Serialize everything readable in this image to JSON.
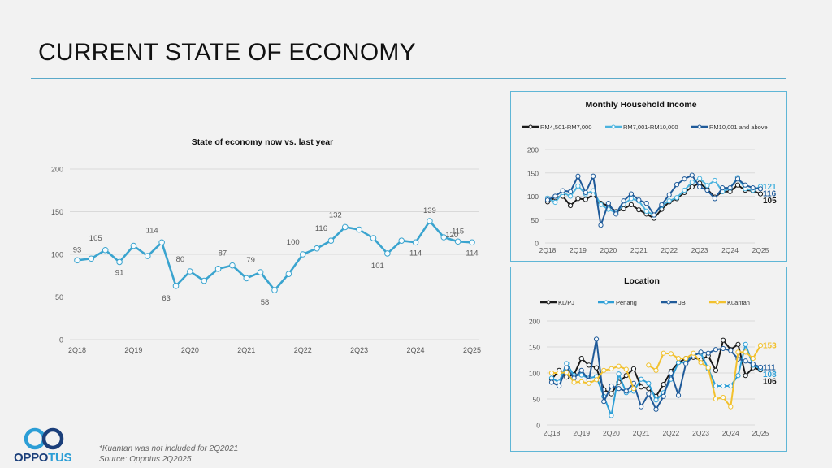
{
  "page": {
    "title": "CURRENT STATE OF ECONOMY",
    "footnote_line1": "*Kuantan was not included for 2Q2021",
    "footnote_line2": "Source: Oppotus 2Q2025",
    "logo": {
      "text_main": "OPPO",
      "text_accent": "TUS",
      "icon": "infinity-rings-icon"
    }
  },
  "colors": {
    "main_line": "#3aa4cf",
    "rule": "#5aa9c9",
    "panel_border": "#5fb6d6",
    "grid": "#d9d9d9",
    "axis_text": "#595959",
    "income_low": "#1a1a1a",
    "income_mid": "#4bb3de",
    "income_high": "#1f5a99",
    "loc_klpj": "#1a1a1a",
    "loc_penang": "#2c9ed6",
    "loc_jb": "#1f5a99",
    "loc_kuantan": "#f2c12e"
  },
  "chart_data": [
    {
      "id": "main",
      "type": "line",
      "title": "State of economy now vs. last year",
      "xlabel": "",
      "ylabel": "",
      "ylim": [
        0,
        200
      ],
      "yticks": [
        0,
        50,
        100,
        150,
        200
      ],
      "grid": true,
      "x": [
        "2Q18",
        "3Q18",
        "4Q18",
        "1Q19",
        "2Q19",
        "3Q19",
        "4Q19",
        "1Q20",
        "2Q20",
        "3Q20",
        "4Q20",
        "1Q21",
        "2Q21",
        "3Q21",
        "4Q21",
        "1Q22",
        "2Q22",
        "3Q22",
        "4Q22",
        "1Q23",
        "2Q23",
        "3Q23",
        "4Q23",
        "1Q24",
        "2Q24",
        "3Q24",
        "4Q24",
        "1Q25",
        "2Q25"
      ],
      "xtick_labels": [
        "2Q18",
        "2Q19",
        "2Q20",
        "2Q21",
        "2Q22",
        "2Q23",
        "2Q24",
        "2Q25"
      ],
      "series": [
        {
          "name": "State of economy",
          "values": [
            93,
            95,
            105,
            91,
            110,
            98,
            114,
            63,
            80,
            69,
            83,
            87,
            72,
            79,
            58,
            77,
            100,
            107,
            116,
            132,
            129,
            119,
            101,
            116,
            114,
            139,
            120,
            115,
            114
          ],
          "labels": [
            {
              "i": 0,
              "text": "93",
              "pos": "above"
            },
            {
              "i": 2,
              "text": "105",
              "pos": "above-left"
            },
            {
              "i": 3,
              "text": "91",
              "pos": "below"
            },
            {
              "i": 6,
              "text": "114",
              "pos": "above-left"
            },
            {
              "i": 7,
              "text": "63",
              "pos": "below-left"
            },
            {
              "i": 8,
              "text": "80",
              "pos": "above-left"
            },
            {
              "i": 11,
              "text": "87",
              "pos": "above-left"
            },
            {
              "i": 13,
              "text": "79",
              "pos": "above-left"
            },
            {
              "i": 14,
              "text": "58",
              "pos": "below-left"
            },
            {
              "i": 16,
              "text": "100",
              "pos": "above-left"
            },
            {
              "i": 18,
              "text": "116",
              "pos": "above-left"
            },
            {
              "i": 19,
              "text": "132",
              "pos": "above-left"
            },
            {
              "i": 22,
              "text": "101",
              "pos": "below-left"
            },
            {
              "i": 24,
              "text": "114",
              "pos": "below"
            },
            {
              "i": 25,
              "text": "139",
              "pos": "above"
            },
            {
              "i": 26,
              "text": "120",
              "pos": "above-right"
            },
            {
              "i": 27,
              "text": "115",
              "pos": "above"
            },
            {
              "i": 28,
              "text": "114",
              "pos": "below"
            }
          ]
        }
      ],
      "legend": "none"
    },
    {
      "id": "income",
      "type": "line",
      "title": "Monthly Household Income",
      "ylim": [
        0,
        200
      ],
      "yticks": [
        0,
        50,
        100,
        150,
        200
      ],
      "grid": true,
      "legend": "top",
      "xtick_labels": [
        "2Q18",
        "2Q19",
        "2Q20",
        "2Q21",
        "2Q22",
        "2Q23",
        "2Q24",
        "2Q25"
      ],
      "series": [
        {
          "name": "RM4,501-RM7,000",
          "color_key": "income_low",
          "values": [
            88,
            97,
            100,
            80,
            95,
            93,
            103,
            85,
            80,
            67,
            73,
            82,
            71,
            62,
            53,
            72,
            88,
            95,
            108,
            120,
            128,
            115,
            98,
            110,
            110,
            124,
            113,
            112,
            105
          ],
          "end_label": "105"
        },
        {
          "name": "RM7,001-RM10,000",
          "color_key": "income_mid",
          "values": [
            96,
            87,
            108,
            100,
            122,
            105,
            112,
            82,
            72,
            65,
            83,
            95,
            90,
            68,
            60,
            80,
            90,
            97,
            113,
            130,
            138,
            123,
            134,
            110,
            117,
            140,
            116,
            113,
            121
          ],
          "end_label": "121"
        },
        {
          "name": "RM10,001 and above",
          "color_key": "income_high",
          "values": [
            92,
            100,
            112,
            110,
            143,
            108,
            143,
            38,
            85,
            62,
            90,
            105,
            92,
            85,
            60,
            82,
            103,
            125,
            137,
            145,
            120,
            113,
            95,
            118,
            118,
            137,
            124,
            118,
            116
          ],
          "end_label": "116"
        }
      ]
    },
    {
      "id": "location",
      "type": "line",
      "title": "Location",
      "ylim": [
        0,
        200
      ],
      "yticks": [
        0,
        50,
        100,
        150,
        200
      ],
      "grid": true,
      "legend": "top",
      "note": "Kuantan was not included for 2Q2021",
      "xtick_labels": [
        "2Q18",
        "2Q19",
        "2Q20",
        "2Q21",
        "2Q22",
        "2Q23",
        "2Q24",
        "2Q25"
      ],
      "series": [
        {
          "name": "KL/PJ",
          "color_key": "loc_klpj",
          "values": [
            88,
            105,
            92,
            97,
            128,
            115,
            110,
            68,
            60,
            82,
            95,
            108,
            73,
            70,
            55,
            78,
            103,
            120,
            128,
            130,
            125,
            133,
            105,
            163,
            145,
            155,
            95,
            110,
            106
          ],
          "end_label": "106"
        },
        {
          "name": "Penang",
          "color_key": "loc_penang",
          "values": [
            90,
            82,
            118,
            95,
            96,
            90,
            93,
            55,
            18,
            98,
            62,
            65,
            88,
            80,
            48,
            62,
            88,
            120,
            120,
            135,
            138,
            108,
            75,
            75,
            75,
            95,
            155,
            115,
            108
          ],
          "end_label": "108"
        },
        {
          "name": "JB",
          "color_key": "loc_jb",
          "values": [
            82,
            75,
            110,
            90,
            105,
            86,
            165,
            45,
            75,
            70,
            65,
            80,
            35,
            60,
            30,
            55,
            100,
            57,
            118,
            133,
            140,
            138,
            145,
            147,
            143,
            127,
            123,
            117,
            111
          ],
          "end_label": "111"
        },
        {
          "name": "Kuantan",
          "color_key": "loc_kuantan",
          "values": [
            100,
            100,
            101,
            82,
            83,
            80,
            87,
            105,
            108,
            113,
            107,
            70,
            null,
            115,
            105,
            138,
            137,
            128,
            128,
            138,
            120,
            110,
            50,
            53,
            35,
            140,
            140,
            128,
            153
          ],
          "end_label": "153"
        }
      ]
    }
  ]
}
